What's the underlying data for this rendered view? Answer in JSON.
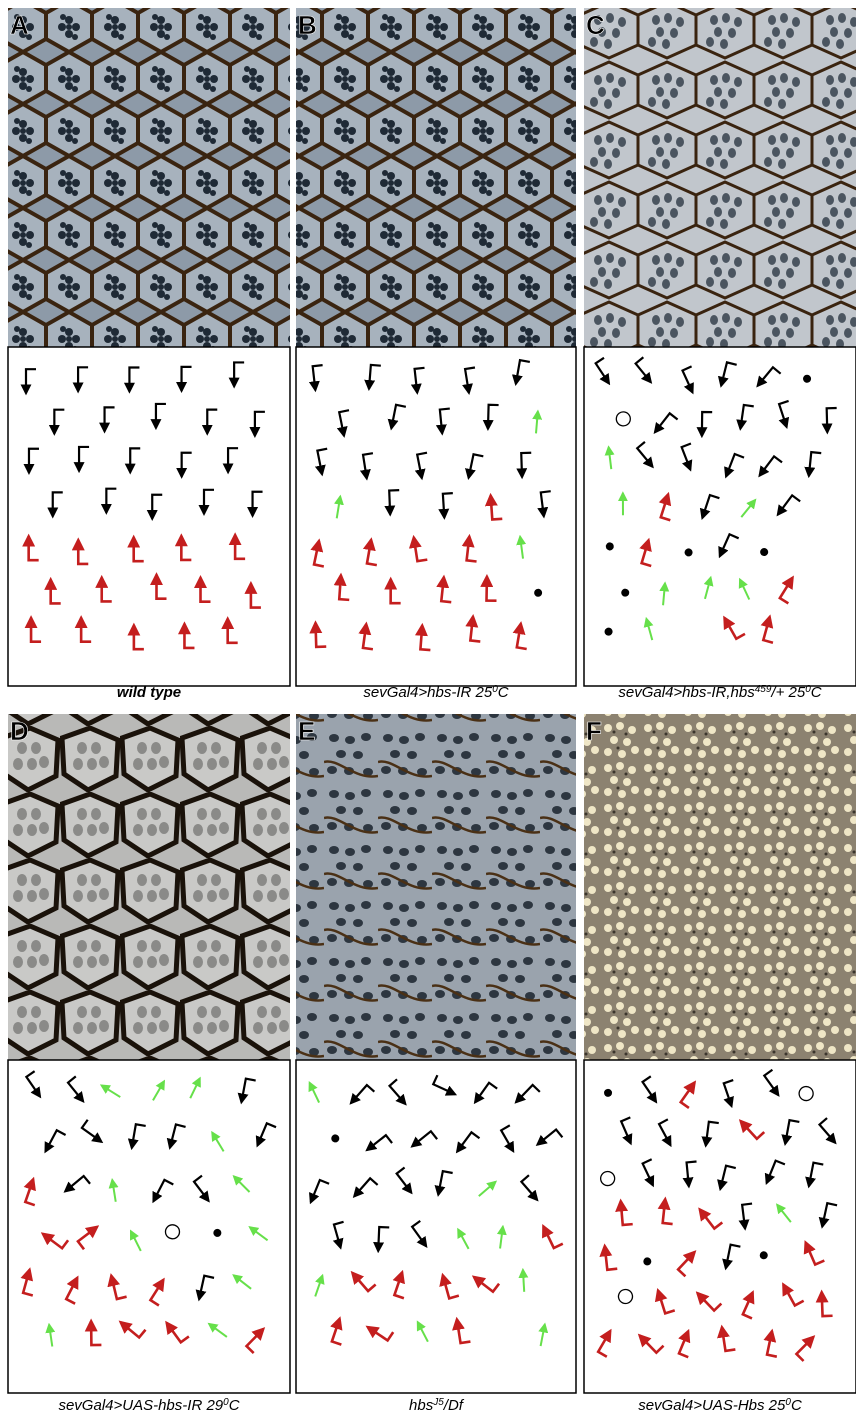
{
  "panels": [
    {
      "letter": "A",
      "caption": [
        {
          "text": "wild type"
        }
      ]
    },
    {
      "letter": "B",
      "caption": [
        {
          "text": "sevGal4>hbs-IR 25"
        },
        {
          "text": "0",
          "sup": true
        },
        {
          "text": "C"
        }
      ]
    },
    {
      "letter": "C",
      "caption": [
        {
          "text": "sevGal4>hbs-IR,hbs"
        },
        {
          "text": "459",
          "sup": true
        },
        {
          "text": "/+ 25"
        },
        {
          "text": "0",
          "sup": true
        },
        {
          "text": "C"
        }
      ]
    },
    {
      "letter": "D",
      "caption": [
        {
          "text": "sevGal4>UAS-hbs-IR 29"
        },
        {
          "text": "0",
          "sup": true
        },
        {
          "text": "C"
        }
      ]
    },
    {
      "letter": "E",
      "caption": [
        {
          "text": "hbs"
        },
        {
          "text": "J5",
          "sup": true
        },
        {
          "text": "/Df"
        }
      ]
    },
    {
      "letter": "F",
      "caption": [
        {
          "text": "sevGal4>UAS-Hbs 25"
        },
        {
          "text": "0",
          "sup": true
        },
        {
          "text": "C"
        }
      ]
    }
  ]
}
